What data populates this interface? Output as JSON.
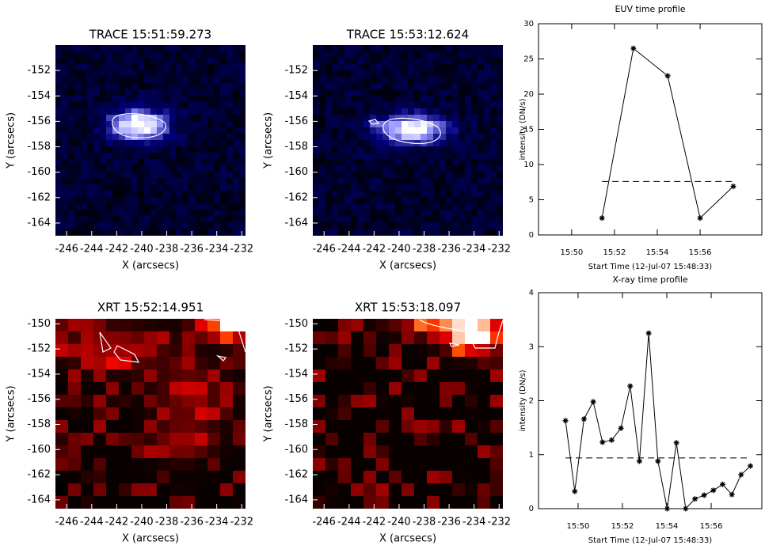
{
  "chart_data": [
    {
      "type": "image",
      "title": "TRACE 15:51:59.273",
      "xlabel": "X (arcsecs)",
      "ylabel": "Y (arcsecs)",
      "xlim": [
        -246.9,
        -231.7
      ],
      "ylim": [
        -165,
        -150
      ],
      "xticks": [
        -246,
        -244,
        -242,
        -240,
        -238,
        -236,
        -234,
        -232
      ],
      "yticks": [
        -164,
        -162,
        -160,
        -158,
        -156,
        -154,
        -152
      ],
      "colormap": "blue"
    },
    {
      "type": "image",
      "title": "TRACE 15:53:12.624",
      "xlabel": "X (arcsecs)",
      "ylabel": "Y (arcsecs)",
      "xlim": [
        -246.9,
        -231.7
      ],
      "ylim": [
        -165,
        -150
      ],
      "xticks": [
        -246,
        -244,
        -242,
        -240,
        -238,
        -236,
        -234,
        -232
      ],
      "yticks": [
        -164,
        -162,
        -160,
        -158,
        -156,
        -154,
        -152
      ],
      "colormap": "blue"
    },
    {
      "type": "image",
      "title": "XRT 15:52:14.951",
      "xlabel": "X (arcsecs)",
      "ylabel": "Y (arcsecs)",
      "xlim": [
        -246.9,
        -231.7
      ],
      "ylim": [
        -164.7,
        -149.6
      ],
      "xticks": [
        -246,
        -244,
        -242,
        -240,
        -238,
        -236,
        -234,
        -232
      ],
      "yticks": [
        -164,
        -162,
        -160,
        -158,
        -156,
        -154,
        -152,
        -150
      ],
      "colormap": "red"
    },
    {
      "type": "image",
      "title": "XRT 15:53:18.097",
      "xlabel": "X (arcsecs)",
      "ylabel": "Y (arcsecs)",
      "xlim": [
        -246.9,
        -231.7
      ],
      "ylim": [
        -164.7,
        -149.6
      ],
      "xticks": [
        -246,
        -244,
        -242,
        -240,
        -238,
        -236,
        -234,
        -232
      ],
      "yticks": [
        -164,
        -162,
        -160,
        -158,
        -156,
        -154,
        -152,
        -150
      ],
      "colormap": "red"
    },
    {
      "type": "line",
      "title": "EUV time profile",
      "xlabel": "Start Time (12-Jul-07 15:48:33)",
      "ylabel": "intensity (DN/s)",
      "x": [
        "15:51:25",
        "15:52:53",
        "15:54:29",
        "15:56:00",
        "15:57:33"
      ],
      "values": [
        2.4,
        26.5,
        22.6,
        2.4,
        6.9
      ],
      "threshold": 7.6,
      "color": "#000000",
      "xlim": [
        "15:48:27",
        "15:58:53"
      ],
      "xticks": [
        "15:50",
        "15:52",
        "15:54",
        "15:56"
      ],
      "ylim": [
        0,
        30
      ],
      "yticks": [
        0,
        5,
        10,
        15,
        20,
        25,
        30
      ]
    },
    {
      "type": "line",
      "title": "X-ray time profile",
      "xlabel": "Start Time (12-Jul-07 15:48:33)",
      "ylabel": "intensity (DN/s)",
      "x": [
        "15:49:26",
        "15:49:51",
        "15:50:16",
        "15:50:41",
        "15:51:06",
        "15:51:31",
        "15:51:56",
        "15:52:21",
        "15:52:46",
        "15:53:11",
        "15:53:36",
        "15:54:01",
        "15:54:26",
        "15:54:51",
        "15:55:16",
        "15:55:41",
        "15:56:06",
        "15:56:31",
        "15:56:56",
        "15:57:21",
        "15:57:46"
      ],
      "values": [
        1.63,
        0.32,
        1.66,
        1.98,
        1.23,
        1.27,
        1.49,
        2.27,
        0.88,
        3.25,
        0.88,
        0,
        1.22,
        0,
        0.18,
        0.25,
        0.34,
        0.45,
        0.26,
        0.63,
        0.79
      ],
      "threshold": 0.94,
      "color": "#000000",
      "xlim": [
        "15:48:13",
        "15:58:17"
      ],
      "xticks": [
        "15:50",
        "15:52",
        "15:54",
        "15:56"
      ],
      "ylim": [
        0,
        4
      ],
      "yticks": [
        0,
        1,
        2,
        3,
        4
      ]
    }
  ]
}
